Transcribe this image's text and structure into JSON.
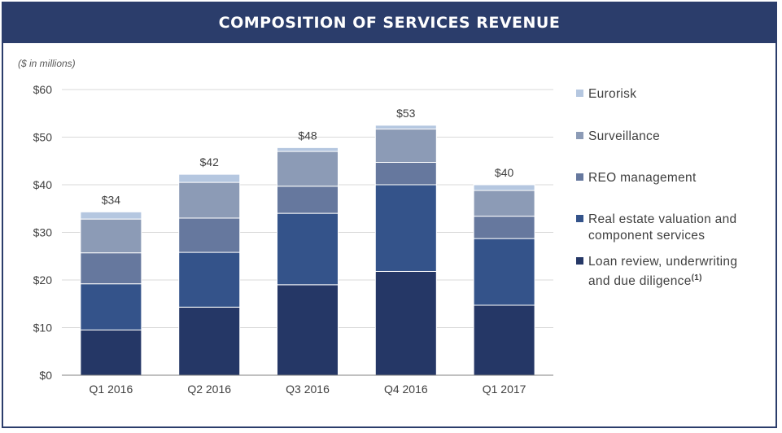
{
  "title": "COMPOSITION OF SERVICES REVENUE",
  "subtitle": "($ in millions)",
  "colors": {
    "frame": "#2b3d6b",
    "title_bg": "#2b3d6b",
    "grid": "#d9d9d9",
    "axis": "#404040"
  },
  "chart_data": {
    "type": "bar",
    "stacked": true,
    "categories": [
      "Q1 2016",
      "Q2 2016",
      "Q3 2016",
      "Q4 2016",
      "Q1 2017"
    ],
    "ylim": [
      0,
      60
    ],
    "yticks": [
      0,
      10,
      20,
      30,
      40,
      50,
      60
    ],
    "ytick_labels": [
      "$0",
      "$10",
      "$20",
      "$30",
      "$40",
      "$50",
      "$60"
    ],
    "grid": true,
    "legend_position": "right",
    "totals": [
      "$34",
      "$42",
      "$48",
      "$53",
      "$40"
    ],
    "series": [
      {
        "name": "Loan review, underwriting and due diligence",
        "legend_main": "Loan review, underwriting",
        "legend_cont": "and due diligence",
        "footnote": "(1)",
        "color": "#253766",
        "values": [
          9.5,
          14.3,
          19.0,
          21.8,
          14.7
        ]
      },
      {
        "name": "Real estate valuation and component services",
        "legend_main": "Real estate valuation and",
        "legend_cont": "component services",
        "color": "#34538a",
        "values": [
          9.7,
          11.5,
          15.0,
          18.2,
          14.0
        ]
      },
      {
        "name": "REO management",
        "legend_main": "REO management",
        "color": "#66789e",
        "values": [
          6.5,
          7.2,
          5.7,
          4.7,
          4.7
        ]
      },
      {
        "name": "Surveillance",
        "legend_main": "Surveillance",
        "color": "#8c9bb6",
        "values": [
          7.1,
          7.5,
          7.3,
          7.0,
          5.4
        ]
      },
      {
        "name": "Eurorisk",
        "legend_main": "Eurorisk",
        "color": "#b5c7e0",
        "values": [
          1.5,
          1.7,
          0.8,
          0.8,
          1.2
        ]
      }
    ]
  }
}
